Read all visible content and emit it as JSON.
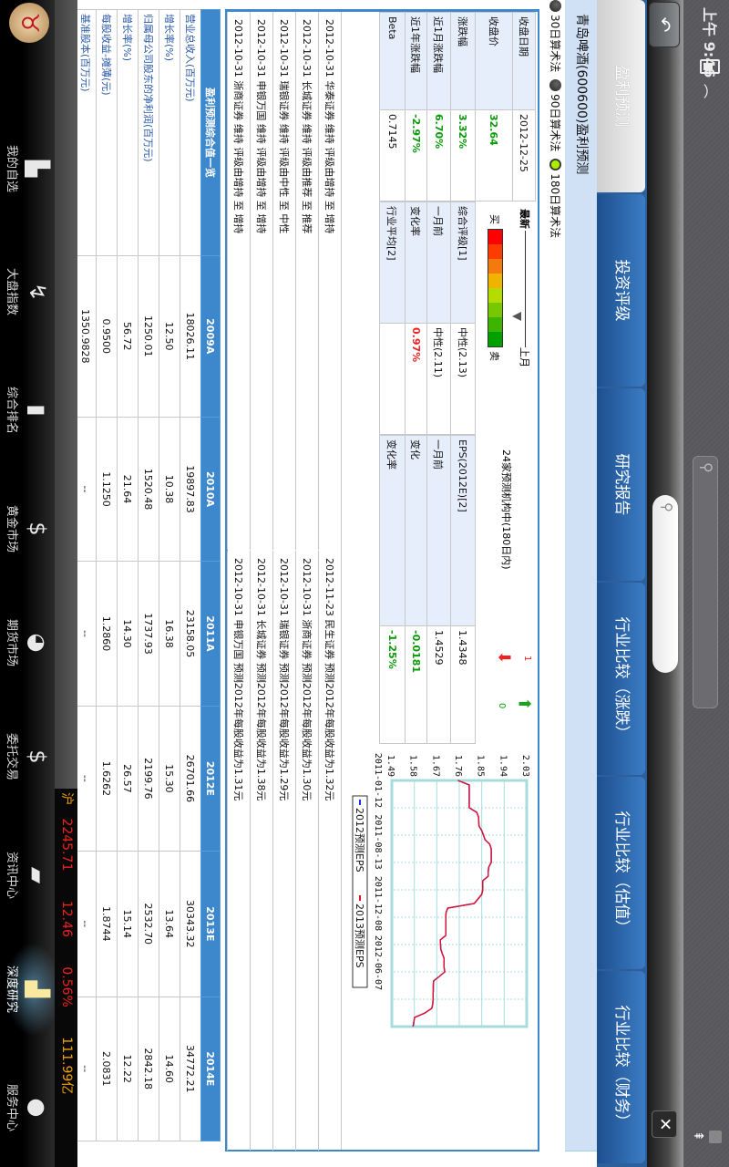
{
  "status": {
    "time": "上午 9:46",
    "battery_icon": "battery-icon",
    "wifi_icon": "wifi-icon"
  },
  "header": {
    "back_icon": "back-arrow-icon",
    "search_icon": "search-icon",
    "close_icon": "close-icon"
  },
  "tabs": [
    {
      "label": "盈利预测",
      "selected": true
    },
    {
      "label": "投资评级",
      "selected": false
    },
    {
      "label": "研究报告",
      "selected": false
    },
    {
      "label": "行业比较（涨跌）",
      "selected": false
    },
    {
      "label": "行业比较（估值）",
      "selected": false
    },
    {
      "label": "行业比较（财务）",
      "selected": false
    }
  ],
  "page_title": "青岛啤酒(600600)盈利预测",
  "radios": [
    {
      "label": "30日算术法",
      "selected": false
    },
    {
      "label": "90日算术法",
      "selected": false
    },
    {
      "label": "180日算术法",
      "selected": true
    }
  ],
  "quote": [
    {
      "label": "收盘日期",
      "value": "2012-12-25",
      "tone": ""
    },
    {
      "label": "收盘价",
      "value": "32.64",
      "tone": "g"
    },
    {
      "label": "涨跌幅",
      "value": "3.32%",
      "tone": "g"
    },
    {
      "label": "近1月涨跌幅",
      "value": "6.70%",
      "tone": "g"
    },
    {
      "label": "近1年涨跌幅",
      "value": "-2.97%",
      "tone": "g"
    },
    {
      "label": "Beta",
      "value": "0.7145",
      "tone": ""
    }
  ],
  "rating": {
    "gauge": {
      "latest_label": "最新",
      "last_month_label": "上月",
      "buy_label": "买",
      "sell_label": "卖",
      "position": 0.75,
      "colors": [
        "#ff0000",
        "#ff3c00",
        "#f47a0e",
        "#f0b400",
        "#b4dc00",
        "#78c800",
        "#3cb400",
        "#00a000"
      ]
    },
    "rows": [
      {
        "label": "综合评级[1]",
        "value": "中性(2.13)",
        "tone": ""
      },
      {
        "label": "一月前",
        "value": "中性(2.11)",
        "tone": ""
      },
      {
        "label": "变化率",
        "value": "0.97%",
        "tone": "r"
      },
      {
        "label": "行业平均[2]",
        "value": "",
        "tone": ""
      }
    ]
  },
  "eps": {
    "heading": "24家预测机构中(180日内)",
    "up_count": "1",
    "down_count": "0",
    "up_color": "#f02020",
    "down_color": "#0a9a0a",
    "rows": [
      {
        "label": "EPS(2012E)[2]",
        "value": "1.4348",
        "tone": ""
      },
      {
        "label": "一月前",
        "value": "1.4529",
        "tone": ""
      },
      {
        "label": "变化",
        "value": "-0.0181",
        "tone": "g"
      },
      {
        "label": "变化率",
        "value": "-1.25%",
        "tone": "g"
      }
    ]
  },
  "chart_data": {
    "type": "line",
    "ylim": [
      1.49,
      2.03
    ],
    "y_ticks": [
      "1.49",
      "1.58",
      "1.67",
      "1.76",
      "1.85",
      "1.94",
      "2.03"
    ],
    "x_ticks": [
      {
        "label": "2011-01-12",
        "at": 0
      },
      {
        "label": "2011-08-13",
        "at": 13.5
      },
      {
        "label": "2011-12-08",
        "at": 27
      },
      {
        "label": "2012-06-07",
        "at": 40
      }
    ],
    "grid": true,
    "legend": "bottom",
    "series": [
      {
        "name": "2012预测EPS",
        "color": "#1a2ee8",
        "values": [
          1.755,
          1.8,
          1.8,
          1.8,
          1.8,
          1.8,
          1.8,
          1.83,
          1.837,
          1.838,
          1.839,
          1.85,
          1.857,
          1.863,
          1.882,
          1.888,
          1.888,
          1.888,
          1.888,
          1.878,
          1.876,
          1.876,
          1.854,
          1.854,
          1.854,
          1.85,
          1.835,
          1.82,
          1.714,
          1.707,
          1.706,
          1.706,
          1.706,
          1.706,
          1.706,
          1.684,
          1.685,
          1.686,
          1.692,
          1.699,
          1.699,
          1.699,
          1.702,
          1.68,
          1.657,
          1.656,
          1.656,
          1.655,
          1.655,
          1.654,
          1.65,
          1.623,
          1.581,
          1.578,
          1.575
        ]
      },
      {
        "name": "2013预测EPS",
        "color": "#e0102a",
        "values": [
          1.755,
          1.8,
          1.8,
          1.8,
          1.8,
          1.8,
          1.8,
          1.83,
          1.837,
          1.838,
          1.839,
          1.85,
          1.857,
          1.863,
          1.882,
          1.888,
          1.888,
          1.888,
          1.888,
          1.878,
          1.876,
          1.876,
          1.854,
          1.854,
          1.854,
          1.85,
          1.835,
          1.82,
          1.714,
          1.707,
          1.706,
          1.706,
          1.706,
          1.706,
          1.706,
          1.684,
          1.685,
          1.686,
          1.692,
          1.699,
          1.699,
          1.699,
          1.702,
          1.68,
          1.657,
          1.656,
          1.656,
          1.655,
          1.655,
          1.654,
          1.65,
          1.623,
          1.581,
          1.578,
          1.575
        ]
      }
    ]
  },
  "rating_changes": [
    "2012-10-31 华泰证券 维持 评级由增持 至 增持",
    "2012-10-31 长城证券 维持 评级由推荐 至 推荐",
    "2012-10-31 瑞银证券 维持 评级由中性 至 中性",
    "2012-10-31 申银万国 维持 评级由增持 至 增持",
    "2012-10-31 浙商证券 维持 评级由增持 至 增持"
  ],
  "eps_forecasts": [
    "2012-11-23 民生证券 预测2012年每股收益为1.32元",
    "2012-10-31 浙商证券 预测2012年每股收益为1.30元",
    "2012-10-31 瑞银证券 预测2012年每股收益为1.29元",
    "2012-10-31 长城证券 预测2012年每股收益为1.38元",
    "2012-10-31 申银万国 预测2012年每股收益为1.31元"
  ],
  "forecast_table": {
    "headers": [
      "盈利预测综合值一览",
      "2009A",
      "2010A",
      "2011A",
      "2012E",
      "2013E",
      "2014E"
    ],
    "rows": [
      [
        "营业总收入(百万元)",
        "18026.11",
        "19897.83",
        "23158.05",
        "26701.66",
        "30343.32",
        "34772.21"
      ],
      [
        "增长率(%)",
        "12.50",
        "10.38",
        "16.38",
        "15.30",
        "13.64",
        "14.60"
      ],
      [
        "归属母公司股东的净利润(百万元)",
        "1250.01",
        "1520.48",
        "1737.93",
        "2199.76",
        "2532.70",
        "2842.18"
      ],
      [
        "增长率(%)",
        "56.72",
        "21.64",
        "14.30",
        "26.57",
        "15.14",
        "12.22"
      ],
      [
        "每股收益-摊薄(元)",
        "0.9500",
        "1.1250",
        "1.2860",
        "1.6262",
        "1.8744",
        "2.0831"
      ],
      [
        "基准股本(百万元)",
        "1350.9828",
        "--",
        "--",
        "--",
        "--",
        "--"
      ]
    ]
  },
  "ticker": {
    "market": "沪",
    "index": "2245.71",
    "change": "12.46",
    "pct": "0.56%",
    "turnover": "111.99亿",
    "up_color": "#f02020",
    "label_color": "#f0a000"
  },
  "nav": [
    {
      "label": "我的自选",
      "icon": "folder-icon",
      "active": false
    },
    {
      "label": "大盘指数",
      "icon": "trend-arrow-icon",
      "active": false
    },
    {
      "label": "综合排名",
      "icon": "bar-chart-icon",
      "active": false
    },
    {
      "label": "黄金市场",
      "icon": "gold-coin-icon",
      "active": false
    },
    {
      "label": "期货市场",
      "icon": "pie-chart-icon",
      "active": false
    },
    {
      "label": "委托交易",
      "icon": "dollar-icon",
      "active": false
    },
    {
      "label": "资讯中心",
      "icon": "document-icon",
      "active": false
    },
    {
      "label": "深度研究",
      "icon": "research-chart-icon",
      "active": true
    },
    {
      "label": "服务中心",
      "icon": "chat-bubble-icon",
      "active": false
    }
  ]
}
